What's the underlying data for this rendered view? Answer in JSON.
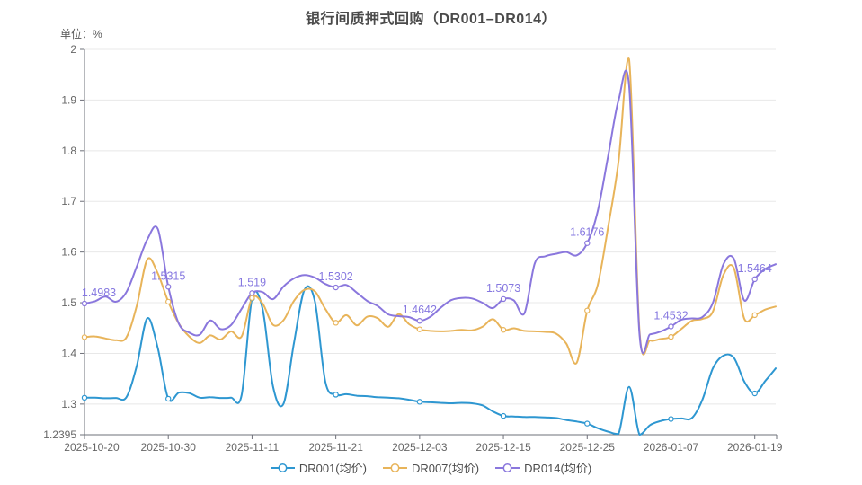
{
  "title": "银行间质押式回购（DR001–DR014）",
  "unit_label": "单位：%",
  "chart_data": {
    "type": "line",
    "smooth": true,
    "grid": true,
    "legend_position": "bottom",
    "ylim": [
      1.2395,
      2
    ],
    "y_ticks": [
      1.2395,
      1.3,
      1.4,
      1.5,
      1.6,
      1.7,
      1.8,
      1.9,
      2
    ],
    "y_tick_labels": [
      "1.2395",
      "1.3",
      "1.4",
      "1.5",
      "1.6",
      "1.7",
      "1.8",
      "1.9",
      "2"
    ],
    "x_tick_labels": [
      "2025-10-20",
      "2025-10-30",
      "2025-11-11",
      "2025-11-21",
      "2025-12-03",
      "2025-12-15",
      "2025-12-25",
      "2026-01-07",
      "2026-01-19"
    ],
    "x_tick_indices": [
      0,
      8,
      16,
      24,
      32,
      40,
      48,
      56,
      64
    ],
    "x": [
      "2025-10-20",
      "2025-10-21",
      "2025-10-22",
      "2025-10-23",
      "2025-10-24",
      "2025-10-27",
      "2025-10-28",
      "2025-10-29",
      "2025-10-30",
      "2025-10-31",
      "2025-11-03",
      "2025-11-04",
      "2025-11-05",
      "2025-11-06",
      "2025-11-07",
      "2025-11-10",
      "2025-11-11",
      "2025-11-12",
      "2025-11-13",
      "2025-11-14",
      "2025-11-17",
      "2025-11-18",
      "2025-11-19",
      "2025-11-20",
      "2025-11-21",
      "2025-11-24",
      "2025-11-25",
      "2025-11-26",
      "2025-11-27",
      "2025-11-28",
      "2025-12-01",
      "2025-12-02",
      "2025-12-03",
      "2025-12-04",
      "2025-12-05",
      "2025-12-08",
      "2025-12-09",
      "2025-12-10",
      "2025-12-11",
      "2025-12-12",
      "2025-12-15",
      "2025-12-16",
      "2025-12-17",
      "2025-12-18",
      "2025-12-19",
      "2025-12-22",
      "2025-12-23",
      "2025-12-24",
      "2025-12-25",
      "2025-12-26",
      "2025-12-29",
      "2025-12-30",
      "2025-12-31",
      "2026-01-02",
      "2026-01-05",
      "2026-01-06",
      "2026-01-07",
      "2026-01-08",
      "2026-01-09",
      "2026-01-12",
      "2026-01-13",
      "2026-01-14",
      "2026-01-15",
      "2026-01-16",
      "2026-01-19",
      "2026-01-20",
      "2026-01-21"
    ],
    "series": [
      {
        "name": "DR001(均价)",
        "color": "#2E97D1",
        "values": [
          1.3125,
          1.3125,
          1.3115,
          1.312,
          1.3135,
          1.3765,
          1.4695,
          1.41,
          1.3105,
          1.3225,
          1.3215,
          1.3125,
          1.3135,
          1.312,
          1.3125,
          1.3175,
          1.5085,
          1.488,
          1.335,
          1.3005,
          1.42,
          1.5255,
          1.503,
          1.3435,
          1.3185,
          1.3195,
          1.3165,
          1.3155,
          1.3135,
          1.3125,
          1.3115,
          1.3085,
          1.3045,
          1.3035,
          1.3025,
          1.3015,
          1.3025,
          1.3015,
          1.2975,
          1.2855,
          1.2765,
          1.2755,
          1.2745,
          1.2745,
          1.2735,
          1.2725,
          1.2685,
          1.2655,
          1.2615,
          1.2525,
          1.2455,
          1.2415,
          1.334,
          1.2395,
          1.2585,
          1.2665,
          1.2705,
          1.2715,
          1.2725,
          1.3085,
          1.3705,
          1.3955,
          1.3915,
          1.3445,
          1.321,
          1.3455,
          1.3705
        ]
      },
      {
        "name": "DR007(均价)",
        "color": "#E8B45A",
        "values": [
          1.432,
          1.4335,
          1.4295,
          1.426,
          1.4315,
          1.495,
          1.5855,
          1.5575,
          1.502,
          1.459,
          1.4335,
          1.4205,
          1.4355,
          1.4275,
          1.4435,
          1.4335,
          1.5095,
          1.4985,
          1.4565,
          1.4655,
          1.5035,
          1.5255,
          1.5225,
          1.4875,
          1.4605,
          1.4755,
          1.4555,
          1.4725,
          1.4695,
          1.4525,
          1.4775,
          1.4575,
          1.4475,
          1.4445,
          1.4435,
          1.4445,
          1.4465,
          1.4455,
          1.4525,
          1.4675,
          1.4465,
          1.4495,
          1.4445,
          1.4435,
          1.4425,
          1.4395,
          1.4195,
          1.3815,
          1.4845,
          1.5345,
          1.65,
          1.78,
          1.9805,
          1.4435,
          1.4255,
          1.4285,
          1.4325,
          1.4485,
          1.4645,
          1.468,
          1.4825,
          1.5545,
          1.5685,
          1.4685,
          1.4755,
          1.4865,
          1.4925
        ]
      },
      {
        "name": "DR014(均价)",
        "color": "#8A77DD",
        "label_color": "#8678E0",
        "values": [
          1.4983,
          1.503,
          1.512,
          1.502,
          1.521,
          1.572,
          1.625,
          1.6455,
          1.5315,
          1.459,
          1.441,
          1.437,
          1.465,
          1.448,
          1.456,
          1.488,
          1.519,
          1.521,
          1.507,
          1.532,
          1.548,
          1.5545,
          1.5495,
          1.537,
          1.5302,
          1.535,
          1.52,
          1.5035,
          1.4935,
          1.477,
          1.4735,
          1.4715,
          1.4642,
          1.472,
          1.49,
          1.505,
          1.5095,
          1.5085,
          1.5,
          1.4895,
          1.5073,
          1.5045,
          1.479,
          1.578,
          1.5915,
          1.5965,
          1.6,
          1.5935,
          1.6176,
          1.68,
          1.79,
          1.9,
          1.9285,
          1.437,
          1.4375,
          1.443,
          1.4532,
          1.4665,
          1.469,
          1.4715,
          1.5,
          1.5755,
          1.587,
          1.5045,
          1.5464,
          1.5665,
          1.576
        ],
        "point_labels": {
          "0": "1.4983",
          "8": "1.5315",
          "16": "1.519",
          "24": "1.5302",
          "32": "1.4642",
          "40": "1.5073",
          "48": "1.6176",
          "56": "1.4532",
          "64": "1.5464"
        }
      }
    ],
    "colors": {
      "grid_line": "#e8e8e8",
      "axis_line": "#6e7079",
      "axis_text": "#666666",
      "title_text": "#4a4a4a",
      "legend_text": "#4d4d4d"
    }
  },
  "legend": {
    "items": [
      {
        "label": "DR001(均价)",
        "color": "#2E97D1"
      },
      {
        "label": "DR007(均价)",
        "color": "#E8B45A"
      },
      {
        "label": "DR014(均价)",
        "color": "#8A77DD"
      }
    ]
  }
}
